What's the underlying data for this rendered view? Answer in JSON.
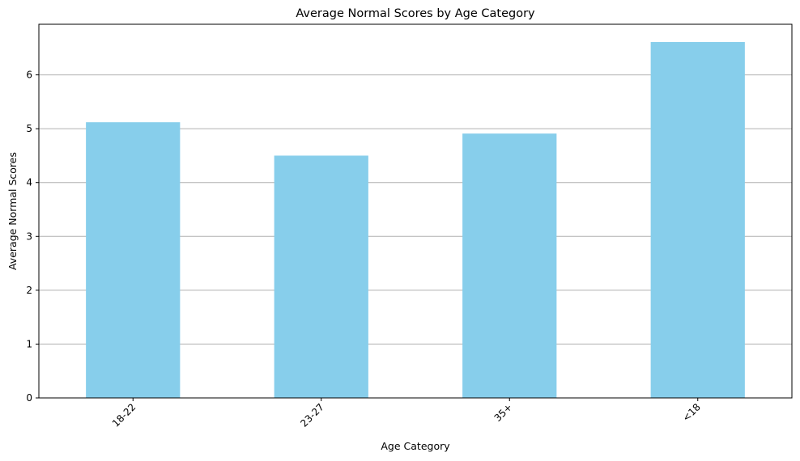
{
  "chart_data": {
    "type": "bar",
    "title": "Average Normal Scores by Age Category",
    "xlabel": "Age Category",
    "ylabel": "Average Normal Scores",
    "categories": [
      "18-22",
      "23-27",
      "35+",
      "<18"
    ],
    "values": [
      5.12,
      4.5,
      4.91,
      6.61
    ],
    "yticks": [
      0,
      1,
      2,
      3,
      4,
      5,
      6
    ],
    "ylim": [
      0,
      6.94
    ],
    "xtick_rotation": 45,
    "grid": "y-axis only",
    "bar_color": "#87CEEB",
    "grid_color": "#b0b0b0"
  }
}
